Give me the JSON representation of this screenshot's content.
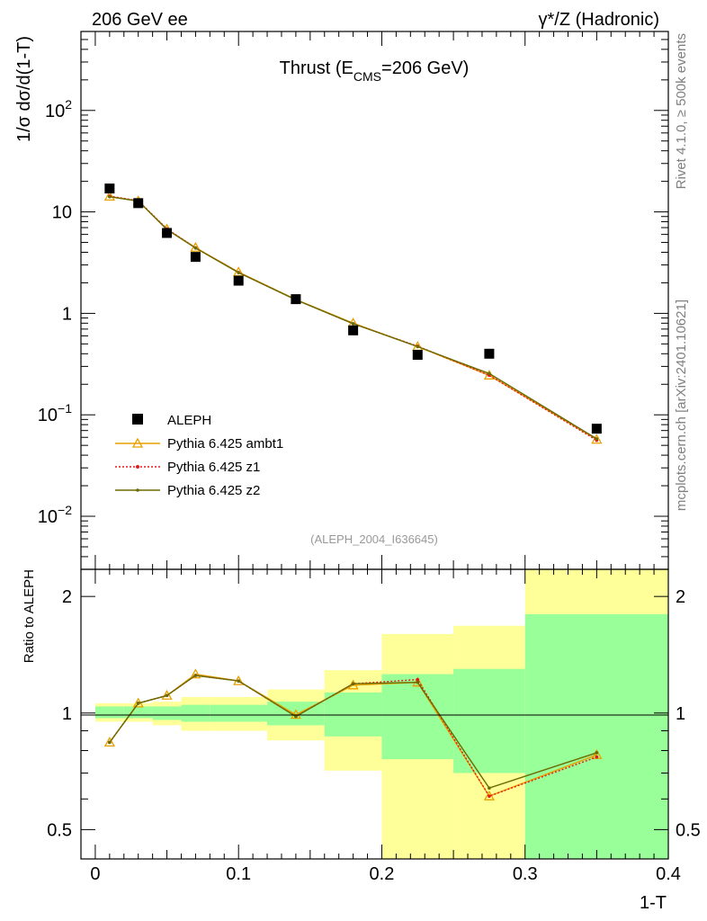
{
  "header": {
    "left": "206 GeV ee",
    "right": "γ*/Z (Hadronic)"
  },
  "side_labels": {
    "rivet": "Rivet 4.1.0, ≥ 500k events",
    "mcplots": "mcplots.cern.ch [arXiv:2401.10621]"
  },
  "colors": {
    "aleph": "#000000",
    "ambt1": "#e8a100",
    "z1": "#e31a1c",
    "z2": "#6b6b00",
    "band_stat": "#99ff99",
    "band_total": "#ffff99"
  },
  "chart_data": [
    {
      "type": "line",
      "panel": "main",
      "title_prefix": "Thrust (E",
      "title_sub": "CMS",
      "title_suffix": "=206 GeV)",
      "ylabel": "1/σ  dσ/d(1-T)",
      "yscale": "log",
      "xlim": [
        -0.01,
        0.4
      ],
      "ylim": [
        0.003,
        600
      ],
      "yticks": [
        {
          "value": 0.01,
          "base": "10",
          "exp": "−2"
        },
        {
          "value": 0.1,
          "base": "10",
          "exp": "−1"
        },
        {
          "value": 1,
          "base": "1",
          "exp": ""
        },
        {
          "value": 10,
          "base": "10",
          "exp": ""
        },
        {
          "value": 100,
          "base": "10",
          "exp": "2"
        }
      ],
      "watermark": "(ALEPH_2004_I636645)",
      "legend_position": "bottom-left",
      "data_points": {
        "name": "ALEPH",
        "x": [
          0.01,
          0.03,
          0.05,
          0.07,
          0.1,
          0.14,
          0.18,
          0.225,
          0.275,
          0.35
        ],
        "y": [
          17.0,
          12.2,
          6.2,
          3.6,
          2.1,
          1.38,
          0.68,
          0.39,
          0.4,
          0.073
        ]
      },
      "series": [
        {
          "name": "Pythia 6.425 ambt1",
          "style": "triangle",
          "x": [
            0.01,
            0.03,
            0.05,
            0.07,
            0.1,
            0.14,
            0.18,
            0.225,
            0.275,
            0.35
          ],
          "y": [
            14.2,
            12.8,
            6.75,
            4.45,
            2.55,
            1.37,
            0.8,
            0.47,
            0.245,
            0.057
          ]
        },
        {
          "name": "Pythia 6.425 z1",
          "style": "dotted",
          "x": [
            0.01,
            0.03,
            0.05,
            0.07,
            0.1,
            0.14,
            0.18,
            0.225,
            0.275,
            0.35
          ],
          "y": [
            14.3,
            12.9,
            6.8,
            4.42,
            2.53,
            1.36,
            0.79,
            0.475,
            0.245,
            0.056
          ]
        },
        {
          "name": "Pythia 6.425 z2",
          "style": "solid",
          "x": [
            0.01,
            0.03,
            0.05,
            0.07,
            0.1,
            0.14,
            0.18,
            0.225,
            0.275,
            0.35
          ],
          "y": [
            14.1,
            12.8,
            6.7,
            4.4,
            2.52,
            1.36,
            0.79,
            0.47,
            0.255,
            0.058
          ]
        }
      ]
    },
    {
      "type": "line",
      "panel": "ratio",
      "ylabel": "Ratio to ALEPH",
      "xlabel": "1-T",
      "yscale": "log",
      "xlim": [
        -0.01,
        0.4
      ],
      "ylim": [
        0.42,
        2.35
      ],
      "yticks": [
        0.5,
        1,
        2
      ],
      "ytick_labels": [
        "0.5",
        "1",
        "2"
      ],
      "xticks": [
        0,
        0.1,
        0.2,
        0.3,
        0.4
      ],
      "xtick_labels": [
        "0",
        "0.1",
        "0.2",
        "0.3",
        "0.4"
      ],
      "bands": [
        {
          "x0": 0.0,
          "x1": 0.02,
          "stat": [
            0.97,
            1.04
          ],
          "total": [
            0.95,
            1.06
          ]
        },
        {
          "x0": 0.02,
          "x1": 0.04,
          "stat": [
            0.97,
            1.04
          ],
          "total": [
            0.95,
            1.06
          ]
        },
        {
          "x0": 0.04,
          "x1": 0.06,
          "stat": [
            0.96,
            1.04
          ],
          "total": [
            0.93,
            1.07
          ]
        },
        {
          "x0": 0.06,
          "x1": 0.08,
          "stat": [
            0.95,
            1.05
          ],
          "total": [
            0.9,
            1.1
          ]
        },
        {
          "x0": 0.08,
          "x1": 0.12,
          "stat": [
            0.95,
            1.05
          ],
          "total": [
            0.9,
            1.1
          ]
        },
        {
          "x0": 0.12,
          "x1": 0.16,
          "stat": [
            0.93,
            1.07
          ],
          "total": [
            0.85,
            1.15
          ]
        },
        {
          "x0": 0.16,
          "x1": 0.2,
          "stat": [
            0.87,
            1.13
          ],
          "total": [
            0.71,
            1.29
          ]
        },
        {
          "x0": 0.2,
          "x1": 0.25,
          "stat": [
            0.76,
            1.26
          ],
          "total": [
            0.36,
            1.6
          ]
        },
        {
          "x0": 0.25,
          "x1": 0.3,
          "stat": [
            0.7,
            1.3
          ],
          "total": [
            0.36,
            1.68
          ]
        },
        {
          "x0": 0.3,
          "x1": 0.4,
          "stat": [
            0.36,
            1.8
          ],
          "total": [
            0.36,
            2.6
          ]
        }
      ],
      "series": [
        {
          "name": "Pythia 6.425 ambt1",
          "style": "triangle",
          "x": [
            0.01,
            0.03,
            0.05,
            0.07,
            0.1,
            0.14,
            0.18,
            0.225,
            0.275,
            0.35
          ],
          "y": [
            0.84,
            1.06,
            1.11,
            1.26,
            1.21,
            0.99,
            1.18,
            1.2,
            0.61,
            0.78
          ]
        },
        {
          "name": "Pythia 6.425 z1",
          "style": "dotted",
          "x": [
            0.01,
            0.03,
            0.05,
            0.07,
            0.1,
            0.14,
            0.18,
            0.225,
            0.275,
            0.35
          ],
          "y": [
            0.84,
            1.06,
            1.11,
            1.25,
            1.21,
            0.98,
            1.19,
            1.22,
            0.61,
            0.77
          ]
        },
        {
          "name": "Pythia 6.425 z2",
          "style": "solid",
          "x": [
            0.01,
            0.03,
            0.05,
            0.07,
            0.1,
            0.14,
            0.18,
            0.225,
            0.275,
            0.35
          ],
          "y": [
            0.84,
            1.06,
            1.11,
            1.25,
            1.21,
            0.98,
            1.19,
            1.2,
            0.64,
            0.79
          ]
        }
      ]
    }
  ]
}
